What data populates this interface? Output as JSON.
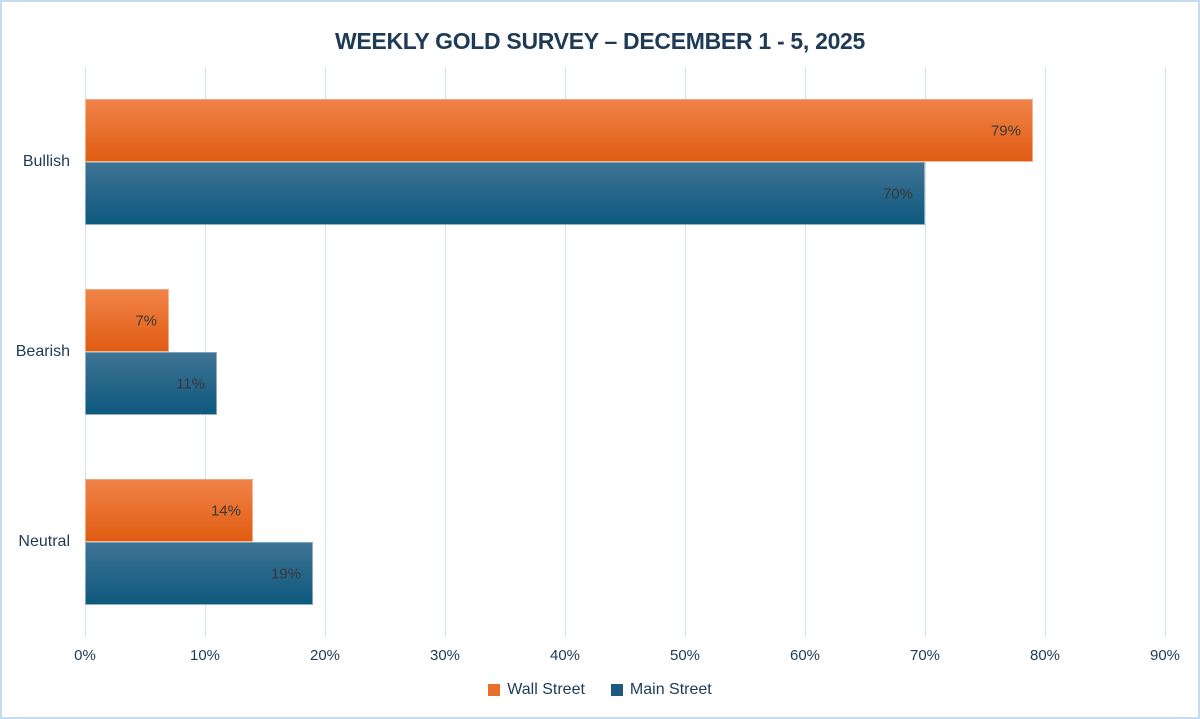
{
  "page": {
    "background": "#ffffff",
    "border_color": "#c6dbf0"
  },
  "chart_data": {
    "type": "bar",
    "orientation": "horizontal",
    "title": "WEEKLY GOLD SURVEY – DECEMBER 1 - 5, 2025",
    "categories": [
      "Bullish",
      "Bearish",
      "Neutral"
    ],
    "series": [
      {
        "name": "Wall Street",
        "values": [
          79,
          7,
          14
        ],
        "labels": [
          "79%",
          "7%",
          "14%"
        ],
        "color": "#e8702a",
        "gradient_top": "#f08348",
        "gradient_bottom": "#e05c12"
      },
      {
        "name": "Main Street",
        "values": [
          70,
          11,
          19
        ],
        "labels": [
          "70%",
          "11%",
          "19%"
        ],
        "color": "#1d5a7d",
        "gradient_top": "#3e7394",
        "gradient_bottom": "#0e597e"
      }
    ],
    "xlabel": "",
    "ylabel": "",
    "xlim": [
      0,
      90
    ],
    "x_ticks": [
      "0%",
      "10%",
      "20%",
      "30%",
      "40%",
      "50%",
      "60%",
      "70%",
      "80%",
      "90%"
    ],
    "grid": true,
    "gridline_color": "#d2e2f3",
    "data_labels": "inside-end",
    "data_label_color": "#383838",
    "axis_text_color": "#1e3a55",
    "legend_position": "bottom"
  }
}
